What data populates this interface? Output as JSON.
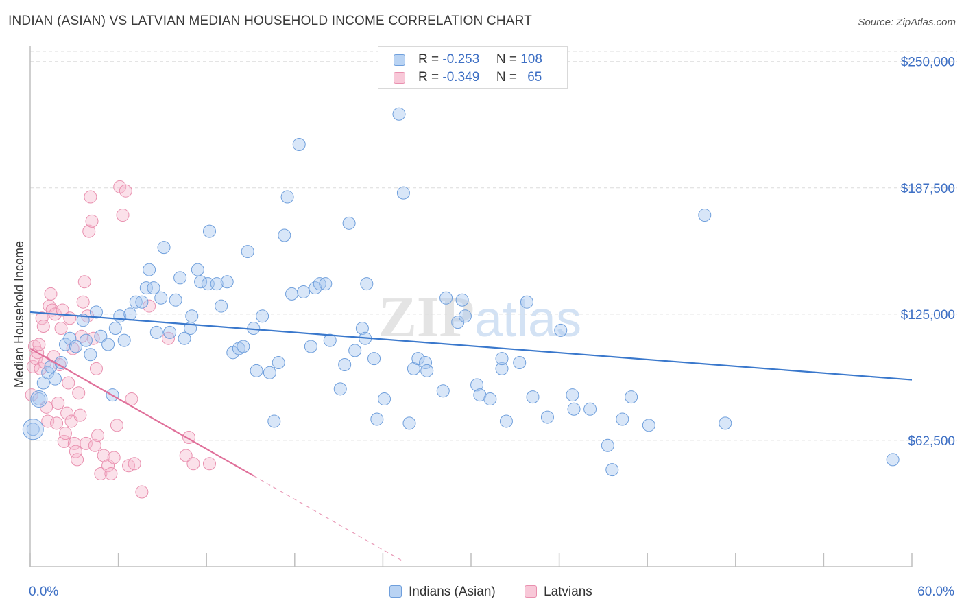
{
  "title": "INDIAN (ASIAN) VS LATVIAN MEDIAN HOUSEHOLD INCOME CORRELATION CHART",
  "source": "Source: ZipAtlas.com",
  "watermark": "ZIPatlas",
  "legend": {
    "rows": [
      {
        "r_label": "R =",
        "r_value": "-0.253",
        "n_label": "N =",
        "n_value": "108"
      },
      {
        "r_label": "R =",
        "r_value": "-0.349",
        "n_label": "N =",
        "n_value": "65"
      }
    ]
  },
  "bottom_legend": {
    "series1": "Indians (Asian)",
    "series2": "Latvians"
  },
  "colors": {
    "indian_fill": "#a9c8f0",
    "indian_stroke": "#6f9fdc",
    "indian_line": "#3a78cc",
    "latvian_fill": "#f6bdd0",
    "latvian_stroke": "#e990af",
    "latvian_line": "#e0709a",
    "axis_text": "#3d6fc4",
    "grid": "#dcdcdc"
  },
  "chart_data": {
    "type": "scatter",
    "title": "INDIAN (ASIAN) VS LATVIAN MEDIAN HOUSEHOLD INCOME CORRELATION CHART",
    "xlabel": "",
    "ylabel": "Median Household Income",
    "xlim": [
      0,
      60
    ],
    "ylim": [
      0,
      255000
    ],
    "x_tick_labels": [
      "0.0%",
      "60.0%"
    ],
    "y_ticks": [
      62500,
      125000,
      187500,
      250000
    ],
    "y_tick_labels": [
      "$62,500",
      "$125,000",
      "$187,500",
      "$250,000"
    ],
    "grid": true,
    "series": [
      {
        "name": "Indians (Asian)",
        "r": -0.253,
        "n": 108,
        "trend": {
          "x": [
            0,
            60
          ],
          "y": [
            126000,
            92500
          ]
        },
        "points": [
          [
            0.2,
            68000
          ],
          [
            0.6,
            83000
          ],
          [
            0.9,
            91000
          ],
          [
            1.2,
            96000
          ],
          [
            1.4,
            99000
          ],
          [
            1.7,
            93000
          ],
          [
            2.1,
            101000
          ],
          [
            2.4,
            110000
          ],
          [
            2.7,
            113000
          ],
          [
            3.1,
            109000
          ],
          [
            3.6,
            122000
          ],
          [
            3.8,
            112000
          ],
          [
            4.1,
            105000
          ],
          [
            4.5,
            126000
          ],
          [
            4.8,
            114000
          ],
          [
            5.3,
            110000
          ],
          [
            5.6,
            85000
          ],
          [
            5.8,
            118000
          ],
          [
            6.1,
            124000
          ],
          [
            6.4,
            112000
          ],
          [
            6.8,
            125000
          ],
          [
            7.2,
            131000
          ],
          [
            7.6,
            131000
          ],
          [
            7.9,
            138000
          ],
          [
            8.1,
            147000
          ],
          [
            8.4,
            138000
          ],
          [
            8.6,
            116000
          ],
          [
            8.9,
            133000
          ],
          [
            9.1,
            158000
          ],
          [
            9.5,
            116000
          ],
          [
            9.9,
            132000
          ],
          [
            10.2,
            143000
          ],
          [
            10.5,
            113000
          ],
          [
            10.9,
            118000
          ],
          [
            11.0,
            124000
          ],
          [
            11.4,
            147000
          ],
          [
            11.6,
            141000
          ],
          [
            12.1,
            140000
          ],
          [
            12.2,
            166000
          ],
          [
            12.7,
            140000
          ],
          [
            13.0,
            129000
          ],
          [
            13.4,
            141000
          ],
          [
            13.8,
            106000
          ],
          [
            14.2,
            108000
          ],
          [
            14.5,
            109000
          ],
          [
            14.8,
            156000
          ],
          [
            15.2,
            118000
          ],
          [
            15.4,
            97000
          ],
          [
            15.8,
            124000
          ],
          [
            16.3,
            96000
          ],
          [
            16.6,
            72000
          ],
          [
            16.9,
            101000
          ],
          [
            17.3,
            164000
          ],
          [
            17.5,
            183000
          ],
          [
            17.8,
            135000
          ],
          [
            18.3,
            209000
          ],
          [
            18.6,
            136000
          ],
          [
            19.1,
            109000
          ],
          [
            19.4,
            138000
          ],
          [
            19.7,
            140000
          ],
          [
            20.1,
            140000
          ],
          [
            20.4,
            112000
          ],
          [
            21.1,
            88000
          ],
          [
            21.4,
            100000
          ],
          [
            21.7,
            170000
          ],
          [
            22.1,
            107000
          ],
          [
            22.6,
            118000
          ],
          [
            22.8,
            113000
          ],
          [
            22.9,
            140000
          ],
          [
            23.4,
            103000
          ],
          [
            23.6,
            73000
          ],
          [
            24.1,
            83000
          ],
          [
            25.1,
            224000
          ],
          [
            25.4,
            185000
          ],
          [
            25.8,
            71000
          ],
          [
            26.1,
            98000
          ],
          [
            26.4,
            103000
          ],
          [
            26.9,
            101000
          ],
          [
            27.0,
            97000
          ],
          [
            28.1,
            87000
          ],
          [
            28.3,
            133000
          ],
          [
            29.1,
            121000
          ],
          [
            29.4,
            132000
          ],
          [
            29.6,
            124000
          ],
          [
            30.4,
            90000
          ],
          [
            30.6,
            85000
          ],
          [
            31.3,
            83000
          ],
          [
            32.1,
            98000
          ],
          [
            32.1,
            103000
          ],
          [
            32.4,
            72000
          ],
          [
            33.3,
            101000
          ],
          [
            33.8,
            131000
          ],
          [
            34.2,
            84000
          ],
          [
            35.2,
            74000
          ],
          [
            36.1,
            117000
          ],
          [
            36.9,
            85000
          ],
          [
            37.0,
            78000
          ],
          [
            38.1,
            78000
          ],
          [
            39.3,
            60000
          ],
          [
            39.6,
            48000
          ],
          [
            40.3,
            73000
          ],
          [
            40.9,
            84000
          ],
          [
            42.1,
            70000
          ],
          [
            45.9,
            174000
          ],
          [
            47.3,
            71000
          ],
          [
            58.7,
            53000
          ]
        ]
      },
      {
        "name": "Latvians",
        "r": -0.349,
        "n": 65,
        "trend_solid": {
          "x": [
            0,
            15.2
          ],
          "y": [
            108000,
            45000
          ]
        },
        "trend_dashed": {
          "x": [
            15.2,
            25.3
          ],
          "y": [
            45000,
            3000
          ]
        },
        "points": [
          [
            0.1,
            85000
          ],
          [
            0.2,
            99000
          ],
          [
            0.3,
            109000
          ],
          [
            0.4,
            103000
          ],
          [
            0.5,
            106000
          ],
          [
            0.6,
            110000
          ],
          [
            0.7,
            98000
          ],
          [
            0.8,
            123000
          ],
          [
            0.9,
            119000
          ],
          [
            1.0,
            101000
          ],
          [
            1.1,
            79000
          ],
          [
            1.2,
            72000
          ],
          [
            1.3,
            129000
          ],
          [
            1.4,
            135000
          ],
          [
            1.5,
            127000
          ],
          [
            1.6,
            104000
          ],
          [
            1.7,
            125000
          ],
          [
            1.8,
            71000
          ],
          [
            1.9,
            81000
          ],
          [
            2.0,
            100000
          ],
          [
            2.1,
            118000
          ],
          [
            2.2,
            127000
          ],
          [
            2.3,
            62000
          ],
          [
            2.4,
            66000
          ],
          [
            2.5,
            76000
          ],
          [
            2.6,
            91000
          ],
          [
            2.7,
            123000
          ],
          [
            2.8,
            72000
          ],
          [
            2.9,
            108000
          ],
          [
            3.0,
            61000
          ],
          [
            3.1,
            57000
          ],
          [
            3.2,
            53000
          ],
          [
            3.3,
            86000
          ],
          [
            3.4,
            75000
          ],
          [
            3.5,
            114000
          ],
          [
            3.6,
            131000
          ],
          [
            3.7,
            141000
          ],
          [
            3.8,
            61000
          ],
          [
            3.9,
            124000
          ],
          [
            4.0,
            166000
          ],
          [
            4.1,
            183000
          ],
          [
            4.2,
            171000
          ],
          [
            4.3,
            113000
          ],
          [
            4.4,
            60000
          ],
          [
            4.5,
            98000
          ],
          [
            4.6,
            65000
          ],
          [
            4.8,
            46000
          ],
          [
            5.0,
            55000
          ],
          [
            5.3,
            50000
          ],
          [
            5.5,
            46000
          ],
          [
            5.7,
            54000
          ],
          [
            5.9,
            70000
          ],
          [
            6.1,
            188000
          ],
          [
            6.3,
            174000
          ],
          [
            6.5,
            186000
          ],
          [
            6.7,
            50000
          ],
          [
            6.9,
            83000
          ],
          [
            7.1,
            51000
          ],
          [
            7.6,
            37000
          ],
          [
            8.1,
            129000
          ],
          [
            9.4,
            113000
          ],
          [
            10.6,
            55000
          ],
          [
            10.8,
            64000
          ],
          [
            11.1,
            51000
          ],
          [
            12.2,
            51000
          ]
        ]
      }
    ]
  }
}
